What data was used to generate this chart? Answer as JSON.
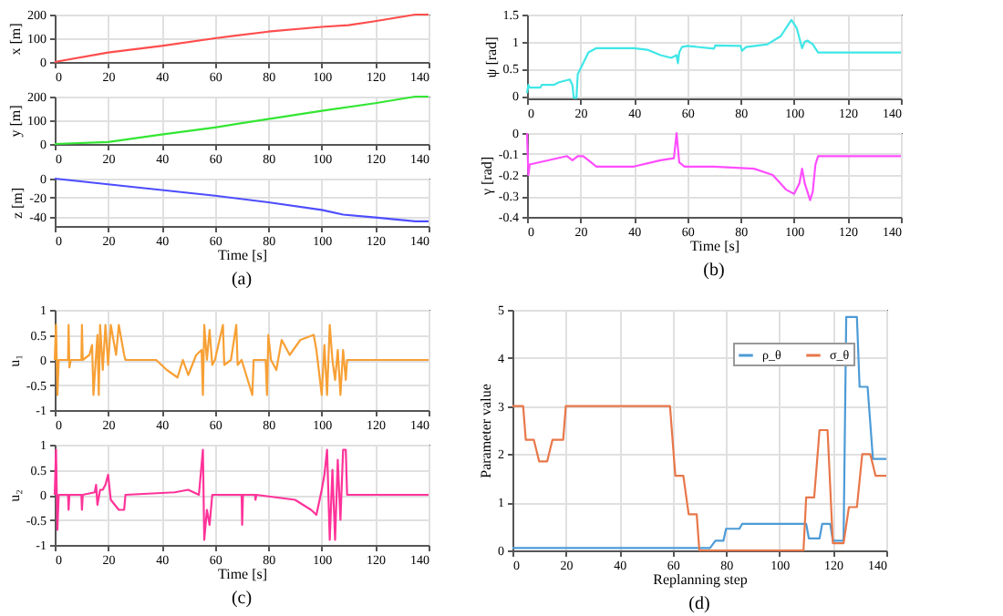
{
  "chart_data": [
    {
      "type": "line",
      "ylabel": "x [m]",
      "xlim": [
        0,
        140
      ],
      "xticks": [
        0,
        20,
        40,
        60,
        80,
        100,
        120,
        140
      ],
      "ylim": [
        0,
        200
      ],
      "yticks": [
        0,
        100,
        200
      ],
      "grid": true,
      "series": [
        {
          "color": "#ff4d4d",
          "x": [
            0,
            20,
            40,
            60,
            80,
            100,
            110,
            120,
            135,
            140
          ],
          "values": [
            0,
            40,
            68,
            100,
            128,
            148,
            155,
            172,
            200,
            200
          ]
        }
      ]
    },
    {
      "type": "line",
      "ylabel": "y [m]",
      "xlim": [
        0,
        140
      ],
      "xticks": [
        0,
        20,
        40,
        60,
        80,
        100,
        120,
        140
      ],
      "ylim": [
        0,
        200
      ],
      "yticks": [
        0,
        100,
        200
      ],
      "grid": true,
      "series": [
        {
          "color": "#33e633",
          "x": [
            0,
            20,
            40,
            60,
            80,
            100,
            120,
            135,
            140
          ],
          "values": [
            0,
            8,
            40,
            70,
            105,
            140,
            172,
            200,
            200
          ]
        }
      ]
    },
    {
      "type": "line",
      "ylabel": "z [m]",
      "xlabel": "Time [s]",
      "annotations": [
        "(a)"
      ],
      "xlim": [
        0,
        140
      ],
      "xticks": [
        0,
        20,
        40,
        60,
        80,
        100,
        120,
        140
      ],
      "ylim": [
        -50,
        0
      ],
      "yticks": [
        -40,
        -20,
        0
      ],
      "grid": true,
      "series": [
        {
          "color": "#4d4dff",
          "x": [
            0,
            20,
            40,
            60,
            80,
            100,
            108,
            120,
            135,
            140
          ],
          "values": [
            0,
            -6,
            -12,
            -18,
            -25,
            -33,
            -38,
            -41,
            -45,
            -45
          ]
        }
      ]
    },
    {
      "type": "line",
      "ylabel": "ψ [rad]",
      "xlim": [
        0,
        140
      ],
      "xticks": [
        0,
        20,
        40,
        60,
        80,
        100,
        120,
        140
      ],
      "ylim": [
        -0.05,
        1.5
      ],
      "yticks": [
        0,
        0.5,
        1,
        1.5
      ],
      "grid": true,
      "series": [
        {
          "color": "#40e6e6",
          "x": [
            0,
            0.5,
            1,
            5,
            5.5,
            10,
            12,
            16,
            17,
            17.5,
            18.5,
            19,
            21,
            23,
            26,
            40,
            45,
            50,
            54,
            56,
            56.5,
            57,
            58,
            60,
            70,
            70.5,
            80,
            80.5,
            82,
            90,
            95,
            99,
            101,
            103,
            104,
            105,
            107,
            109,
            140
          ],
          "values": [
            0.05,
            0.2,
            0.15,
            0.15,
            0.2,
            0.2,
            0.25,
            0.3,
            0.2,
            -0.04,
            -0.04,
            0.4,
            0.6,
            0.8,
            0.88,
            0.88,
            0.85,
            0.75,
            0.7,
            0.75,
            0.6,
            0.8,
            0.9,
            0.92,
            0.87,
            0.93,
            0.92,
            0.83,
            0.9,
            0.95,
            1.1,
            1.4,
            1.25,
            0.88,
            1.0,
            1.02,
            0.95,
            0.8,
            0.8
          ]
        }
      ]
    },
    {
      "type": "line",
      "ylabel": "γ [rad]",
      "xlabel": "Time [s]",
      "annotations": [
        "(b)"
      ],
      "xlim": [
        0,
        140
      ],
      "xticks": [
        0,
        20,
        40,
        60,
        80,
        100,
        120,
        140
      ],
      "ylim": [
        -0.4,
        0
      ],
      "yticks": [
        -0.4,
        -0.3,
        -0.2,
        -0.1,
        0
      ],
      "grid": true,
      "series": [
        {
          "color": "#ff4dff",
          "x": [
            0,
            0.5,
            1,
            15,
            17,
            19,
            21,
            23,
            26,
            40,
            50,
            55,
            56,
            57,
            59,
            70,
            85,
            92,
            97,
            100,
            102,
            103,
            104,
            106,
            107,
            108,
            109,
            140
          ],
          "values": [
            0,
            -0.2,
            -0.15,
            -0.11,
            -0.13,
            -0.11,
            -0.11,
            -0.13,
            -0.16,
            -0.16,
            -0.13,
            -0.12,
            0,
            -0.14,
            -0.16,
            -0.16,
            -0.17,
            -0.2,
            -0.27,
            -0.29,
            -0.24,
            -0.17,
            -0.24,
            -0.32,
            -0.28,
            -0.15,
            -0.11,
            -0.11
          ]
        }
      ]
    },
    {
      "type": "line",
      "ylabel": "u₁",
      "xlim": [
        0,
        140
      ],
      "xticks": [
        0,
        20,
        40,
        60,
        80,
        100,
        120,
        140
      ],
      "ylim": [
        -1,
        1
      ],
      "yticks": [
        -1,
        -0.5,
        0,
        0.5,
        1
      ],
      "grid": true,
      "series": [
        {
          "color": "#f7a035",
          "x": [
            0,
            0.5,
            1,
            1.5,
            5,
            5.2,
            5.5,
            6,
            10,
            10.2,
            10.5,
            13,
            14,
            14.5,
            16,
            16.5,
            17,
            18,
            19,
            20,
            21,
            23,
            24,
            26,
            26.5,
            38,
            42,
            46,
            48,
            50,
            53,
            55,
            55.5,
            56,
            57,
            58,
            59,
            60,
            63,
            63.5,
            66,
            68,
            68.5,
            70,
            74,
            74.5,
            79,
            79.5,
            80,
            81,
            83,
            85,
            88,
            92,
            97,
            98,
            100,
            101,
            102,
            103,
            104,
            105,
            106,
            107,
            108,
            109,
            109.5,
            140
          ],
          "values": [
            0,
            0.7,
            -0.7,
            0,
            0,
            0.7,
            -0.15,
            0,
            0,
            0.7,
            0,
            0.1,
            0.3,
            -0.7,
            0.5,
            -0.7,
            0.7,
            -0.2,
            0.7,
            -0.1,
            0.7,
            0.1,
            0.7,
            0.1,
            0,
            0,
            -0.2,
            -0.35,
            0,
            -0.3,
            0.1,
            0.2,
            -0.7,
            0.7,
            0,
            0.6,
            -0.1,
            0,
            0.7,
            -0.1,
            0,
            0.7,
            -0.1,
            0,
            -0.7,
            0,
            0,
            -0.7,
            0.5,
            0,
            -0.2,
            0.4,
            0.1,
            0.4,
            0.5,
            0.2,
            -0.7,
            0.3,
            -0.7,
            0.7,
            0,
            -0.4,
            0.2,
            -0.7,
            0.2,
            -0.4,
            0,
            0
          ]
        }
      ]
    },
    {
      "type": "line",
      "ylabel": "u₂",
      "xlabel": "Time [s]",
      "annotations": [
        "(c)"
      ],
      "xlim": [
        0,
        140
      ],
      "xticks": [
        0,
        20,
        40,
        60,
        80,
        100,
        120,
        140
      ],
      "ylim": [
        -1,
        1
      ],
      "yticks": [
        -1,
        -0.5,
        0,
        0.5,
        1
      ],
      "grid": true,
      "series": [
        {
          "color": "#ff3399",
          "x": [
            0,
            0.5,
            1,
            1.5,
            5,
            5.2,
            5.5,
            10,
            10.2,
            10.5,
            15,
            15.5,
            16,
            17,
            18,
            19,
            20,
            21,
            24,
            26,
            26.5,
            45,
            50,
            54,
            55.5,
            56,
            57,
            58,
            59,
            70,
            70.2,
            70.5,
            75,
            75.2,
            75.5,
            90,
            96,
            98,
            100,
            101,
            102,
            103,
            104,
            105,
            106,
            107,
            108,
            109,
            109.5,
            140
          ],
          "values": [
            0,
            0.9,
            -0.7,
            0,
            0,
            -0.3,
            0,
            0,
            -0.3,
            0,
            0.05,
            0.2,
            -0.2,
            0.1,
            0.1,
            0.2,
            0.4,
            -0.1,
            -0.3,
            -0.3,
            0,
            0.05,
            0.1,
            0,
            0.9,
            -0.9,
            -0.3,
            -0.6,
            0,
            0,
            -0.6,
            0,
            0,
            -0.1,
            0,
            -0.1,
            -0.3,
            -0.4,
            0.1,
            0.4,
            0.9,
            -0.9,
            0.5,
            -0.9,
            0.7,
            -0.5,
            0.9,
            0.9,
            0,
            0
          ]
        }
      ]
    },
    {
      "type": "line",
      "ylabel": "Parameter value",
      "xlabel": "Replanning step",
      "annotations": [
        "(d)"
      ],
      "xlim": [
        0,
        140
      ],
      "xticks": [
        0,
        20,
        40,
        60,
        80,
        100,
        120,
        140
      ],
      "ylim": [
        0,
        5
      ],
      "yticks": [
        0,
        1,
        2,
        3,
        4,
        5
      ],
      "grid": true,
      "legend": "top right",
      "series": [
        {
          "name": "ρ_θ",
          "color": "#4d9bd6",
          "x": [
            0,
            74,
            76,
            79,
            80,
            85,
            86,
            110,
            111,
            115,
            116,
            119,
            120,
            124,
            125,
            129,
            130,
            133,
            135,
            140
          ],
          "values": [
            0.05,
            0.05,
            0.2,
            0.2,
            0.45,
            0.45,
            0.55,
            0.55,
            0.25,
            0.25,
            0.55,
            0.55,
            0.2,
            0.2,
            4.85,
            4.85,
            3.4,
            3.4,
            1.9,
            1.9
          ]
        },
        {
          "name": "σ_θ",
          "color": "#e8774a",
          "x": [
            0,
            4,
            5,
            8,
            10,
            13,
            15,
            19,
            20,
            59,
            61,
            64,
            66,
            69,
            70,
            109,
            110,
            113,
            115,
            118,
            120,
            124,
            126,
            129,
            131,
            134,
            136,
            140
          ],
          "values": [
            3,
            3,
            2.3,
            2.3,
            1.85,
            1.85,
            2.3,
            2.3,
            3,
            3,
            1.55,
            1.55,
            0.75,
            0.75,
            0,
            0,
            1.1,
            1.1,
            2.5,
            2.5,
            0.15,
            0.15,
            0.9,
            0.9,
            2,
            2,
            1.55,
            1.55
          ]
        }
      ]
    }
  ]
}
